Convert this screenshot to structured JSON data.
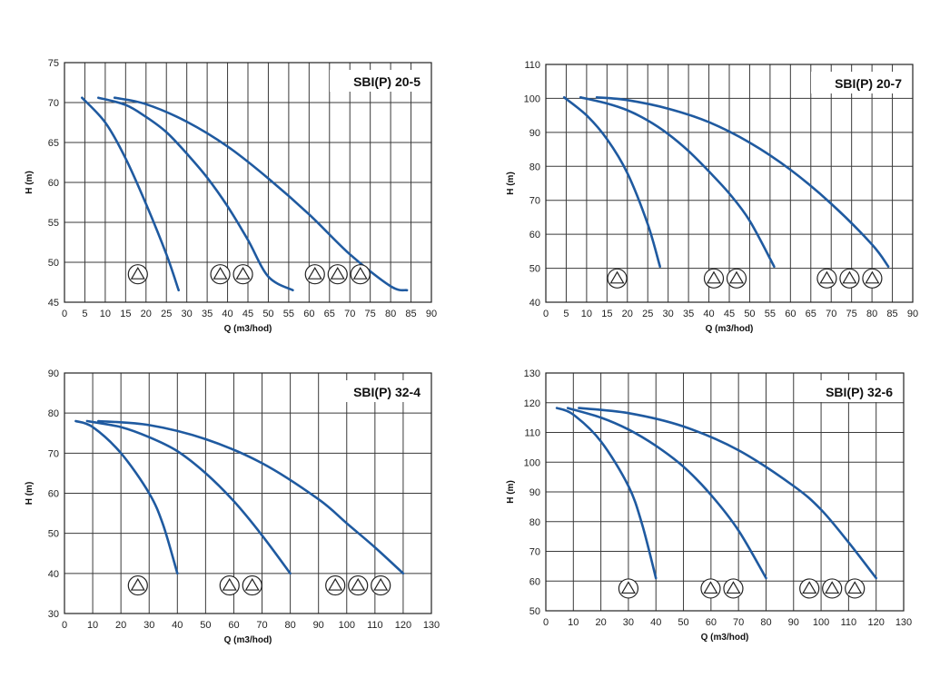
{
  "colors": {
    "curve": "#1f5aa0",
    "grid": "#3a3a3a",
    "frame": "#222222",
    "symbol": "#222222"
  },
  "chart_data": [
    {
      "type": "line",
      "title": "SBI(P) 20-5",
      "xlabel": "Q (m3/hod)",
      "ylabel": "H (m)",
      "xlim": [
        0,
        90
      ],
      "ylim": [
        45,
        75
      ],
      "xticks": [
        0,
        5,
        10,
        15,
        20,
        25,
        30,
        35,
        40,
        45,
        50,
        55,
        60,
        65,
        70,
        75,
        80,
        85,
        90
      ],
      "yticks": [
        45,
        50,
        55,
        60,
        65,
        70,
        75
      ],
      "grid": true,
      "series": [
        {
          "x": [
            4.3,
            10,
            15,
            20,
            25,
            28
          ],
          "y": [
            70.6,
            67.5,
            63,
            57.3,
            51,
            46.5
          ]
        },
        {
          "x": [
            8.3,
            15,
            20,
            25,
            30,
            35,
            40,
            45,
            50,
            56
          ],
          "y": [
            70.6,
            69.7,
            68.2,
            66.3,
            63.6,
            60.6,
            57,
            52.8,
            48.2,
            46.5
          ]
        },
        {
          "x": [
            12.3,
            20,
            30,
            40,
            50,
            60,
            70,
            80,
            84
          ],
          "y": [
            70.6,
            69.8,
            67.6,
            64.5,
            60.5,
            56,
            51,
            47,
            46.5
          ]
        }
      ],
      "pump_groups": [
        {
          "count": 1,
          "x": 18,
          "y": 48.5
        },
        {
          "count": 2,
          "x": 41,
          "y": 48.5
        },
        {
          "count": 3,
          "x": 67,
          "y": 48.5
        }
      ]
    },
    {
      "type": "line",
      "title": "SBI(P) 20-7",
      "xlabel": "Q (m3/hod)",
      "ylabel": "H (m)",
      "xlim": [
        0,
        90
      ],
      "ylim": [
        40,
        110
      ],
      "xticks": [
        0,
        5,
        10,
        15,
        20,
        25,
        30,
        35,
        40,
        45,
        50,
        55,
        60,
        65,
        70,
        75,
        80,
        85,
        90
      ],
      "yticks": [
        40,
        50,
        60,
        70,
        80,
        90,
        100,
        110
      ],
      "grid": true,
      "series": [
        {
          "x": [
            4.5,
            10,
            15,
            20,
            25,
            28
          ],
          "y": [
            100.3,
            95,
            88,
            78,
            63,
            50.5
          ]
        },
        {
          "x": [
            8.5,
            15,
            20,
            25,
            30,
            35,
            40,
            45,
            50,
            56
          ],
          "y": [
            100.3,
            98.5,
            96.5,
            93.5,
            89.5,
            84.5,
            78.5,
            72,
            64,
            50.5
          ]
        },
        {
          "x": [
            12.5,
            20,
            30,
            40,
            50,
            60,
            70,
            80,
            84
          ],
          "y": [
            100.3,
            99.5,
            97,
            93,
            87,
            79,
            69,
            57,
            50.5
          ]
        }
      ],
      "pump_groups": [
        {
          "count": 1,
          "x": 17.5,
          "y": 47
        },
        {
          "count": 2,
          "x": 44,
          "y": 47
        },
        {
          "count": 3,
          "x": 74.5,
          "y": 47
        }
      ]
    },
    {
      "type": "line",
      "title": "SBI(P) 32-4",
      "xlabel": "Q (m3/hod)",
      "ylabel": "H (m)",
      "xlim": [
        0,
        130
      ],
      "ylim": [
        30,
        90
      ],
      "xticks": [
        0,
        10,
        20,
        30,
        40,
        50,
        60,
        70,
        80,
        90,
        100,
        110,
        120,
        130
      ],
      "yticks": [
        30,
        40,
        50,
        60,
        70,
        80,
        90
      ],
      "grid": true,
      "series": [
        {
          "x": [
            4,
            10,
            20,
            30,
            35,
            40
          ],
          "y": [
            78,
            76.5,
            70,
            60,
            52,
            40
          ]
        },
        {
          "x": [
            8,
            20,
            30,
            40,
            50,
            60,
            70,
            80
          ],
          "y": [
            78,
            76.5,
            74,
            70.5,
            65,
            58,
            49.5,
            40
          ]
        },
        {
          "x": [
            12,
            30,
            50,
            70,
            90,
            100,
            110,
            120
          ],
          "y": [
            78,
            77,
            73.5,
            67.5,
            58.5,
            52.5,
            46.5,
            40
          ]
        }
      ],
      "pump_groups": [
        {
          "count": 1,
          "x": 26,
          "y": 37
        },
        {
          "count": 2,
          "x": 62.5,
          "y": 37
        },
        {
          "count": 3,
          "x": 104,
          "y": 37
        }
      ]
    },
    {
      "type": "line",
      "title": "SBI(P) 32-6",
      "xlabel": "Q (m3/hod)",
      "ylabel": "H (m)",
      "xlim": [
        0,
        130
      ],
      "ylim": [
        50,
        130
      ],
      "xticks": [
        0,
        10,
        20,
        30,
        40,
        50,
        60,
        70,
        80,
        90,
        100,
        110,
        120,
        130
      ],
      "yticks": [
        50,
        60,
        70,
        80,
        90,
        100,
        110,
        120,
        130
      ],
      "grid": true,
      "series": [
        {
          "x": [
            4,
            10,
            20,
            30,
            35,
            40
          ],
          "y": [
            118.2,
            116,
            107,
            92,
            79,
            61
          ]
        },
        {
          "x": [
            8,
            20,
            30,
            40,
            50,
            60,
            70,
            80
          ],
          "y": [
            118.2,
            115,
            111,
            105.5,
            98.5,
            89,
            77,
            61
          ]
        },
        {
          "x": [
            12,
            30,
            50,
            70,
            90,
            100,
            110,
            120
          ],
          "y": [
            118.2,
            116.5,
            112,
            104,
            92,
            84,
            73,
            61
          ]
        }
      ],
      "pump_groups": [
        {
          "count": 1,
          "x": 30,
          "y": 57.5
        },
        {
          "count": 2,
          "x": 64,
          "y": 57.5
        },
        {
          "count": 3,
          "x": 104,
          "y": 57.5
        }
      ]
    }
  ]
}
